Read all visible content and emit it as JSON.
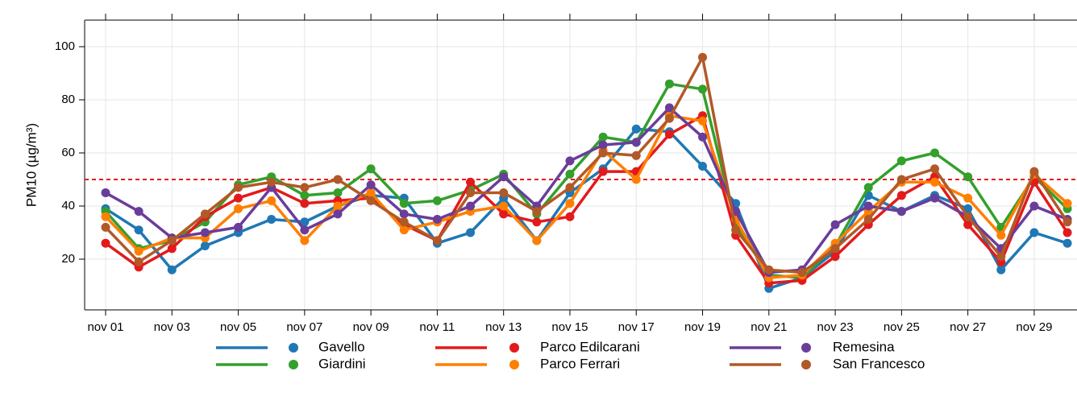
{
  "chart_data": {
    "type": "line",
    "y_label": "PM10 (µg/m³)",
    "categories": [
      "nov 01",
      null,
      "nov 03",
      null,
      "nov 05",
      null,
      "nov 07",
      null,
      "nov 09",
      null,
      "nov 11",
      null,
      "nov 13",
      null,
      "nov 15",
      null,
      "nov 17",
      null,
      "nov 19",
      null,
      "nov 21",
      null,
      "nov 23",
      null,
      "nov 25",
      null,
      "nov 27",
      null,
      "nov 29",
      null
    ],
    "series": [
      {
        "name": "Gavello",
        "color": "#1f78b4",
        "values": [
          39,
          31,
          16,
          25,
          30,
          35,
          34,
          40,
          44,
          43,
          26,
          30,
          43,
          27,
          45,
          54,
          69,
          68,
          55,
          41,
          9,
          13,
          23,
          44,
          38,
          44,
          39,
          16,
          30,
          26
        ]
      },
      {
        "name": "Giardini",
        "color": "#33a02c",
        "values": [
          38,
          24,
          27,
          34,
          48,
          51,
          44,
          45,
          54,
          41,
          42,
          46,
          52,
          37,
          52,
          66,
          64,
          86,
          84,
          33,
          14,
          13,
          25,
          47,
          57,
          60,
          51,
          32,
          51,
          39
        ]
      },
      {
        "name": "Parco Edilcarani",
        "color": "#e31a1c",
        "values": [
          26,
          17,
          24,
          36,
          43,
          47,
          41,
          42,
          43,
          33,
          27,
          49,
          37,
          34,
          36,
          53,
          53,
          67,
          74,
          29,
          11,
          12,
          21,
          33,
          44,
          51,
          33,
          19,
          49,
          30
        ]
      },
      {
        "name": "Parco Ferrari",
        "color": "#ff7f00",
        "values": [
          36,
          23,
          28,
          28,
          39,
          42,
          27,
          40,
          45,
          31,
          34,
          38,
          40,
          27,
          41,
          61,
          50,
          74,
          72,
          35,
          13,
          14,
          26,
          38,
          49,
          49,
          43,
          29,
          52,
          41
        ]
      },
      {
        "name": "Remesina",
        "color": "#6a3d9a",
        "values": [
          45,
          38,
          28,
          30,
          32,
          47,
          31,
          37,
          48,
          37,
          35,
          40,
          51,
          40,
          57,
          63,
          64,
          77,
          66,
          38,
          15,
          16,
          33,
          40,
          38,
          43,
          36,
          24,
          40,
          35
        ]
      },
      {
        "name": "San Francesco",
        "color": "#b15928",
        "values": [
          32,
          19,
          27,
          37,
          47,
          49,
          47,
          50,
          42,
          34,
          27,
          45,
          45,
          38,
          47,
          60,
          59,
          73,
          96,
          31,
          16,
          15,
          24,
          35,
          50,
          54,
          36,
          21,
          53,
          34
        ]
      }
    ],
    "ylim": [
      0,
      110
    ],
    "yticks": [
      20,
      40,
      60,
      80,
      100
    ],
    "threshold": 50,
    "threshold_color": "#e31a1c",
    "grid": true
  }
}
